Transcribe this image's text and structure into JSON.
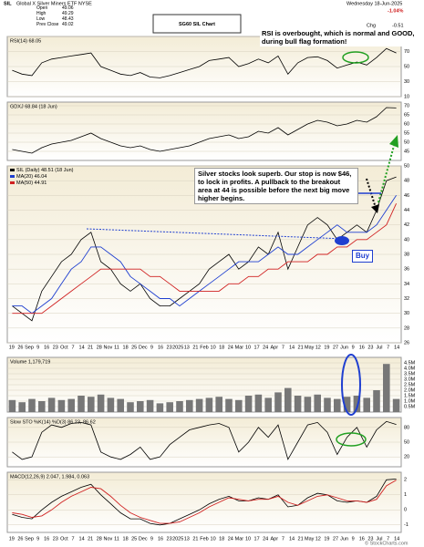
{
  "header": {
    "symbol": "SIL",
    "name": "Global X Silver Miners ETF NYSE",
    "quote": [
      [
        "Open",
        "49.06"
      ],
      [
        "High",
        "49.29"
      ],
      [
        "Low",
        "48.43"
      ],
      [
        "Prev Close",
        "49.02"
      ]
    ],
    "title": "SG60 SIL Chart",
    "date": "Wednesday 18-Jun-2025",
    "change_pct": "-1.04%",
    "change": "-0.51",
    "change_label": "Chg",
    "credit": "© StockCharts.com"
  },
  "annotations": {
    "rsi": "RSI is overbought, which is normal and GOOD, during bull flag formation!",
    "price": "Silver stocks look superb.  Our stop is now $46, to lock in profits.  A pullback to the breakout area at 44 is possible before the next big move higher begins.",
    "buy": "Buy"
  },
  "dates": [
    "19",
    "26",
    "Sep",
    "9",
    "16",
    "23",
    "Oct",
    "7",
    "14",
    "21",
    "28",
    "Nov",
    "11",
    "18",
    "25",
    "Dec",
    "9",
    "16",
    "23",
    "2025",
    "13",
    "21",
    "Feb",
    "10",
    "18",
    "24",
    "Mar",
    "10",
    "17",
    "24",
    "Apr",
    "7",
    "14",
    "21",
    "May",
    "12",
    "19",
    "27",
    "Jun",
    "9",
    "16",
    "23",
    "Jul",
    "7",
    "14"
  ],
  "chart_data": [
    {
      "type": "line",
      "label": "RSI(14) 68.05",
      "ylim": [
        10,
        90
      ],
      "yticks": [
        10,
        30,
        50,
        70,
        90
      ],
      "grid": true,
      "series": [
        {
          "color": "#000000",
          "values": [
            45,
            40,
            38,
            55,
            60,
            62,
            64,
            66,
            68,
            50,
            45,
            40,
            38,
            42,
            36,
            35,
            38,
            42,
            46,
            50,
            58,
            60,
            62,
            50,
            54,
            60,
            55,
            64,
            40,
            55,
            62,
            63,
            58,
            48,
            52,
            56,
            52,
            62,
            74,
            68
          ]
        }
      ]
    },
    {
      "type": "line",
      "label": "GDXJ 68.84 (18 Jun)",
      "ylim": [
        40,
        72
      ],
      "yticks": [
        45,
        50,
        55,
        60,
        65,
        70
      ],
      "grid": true,
      "series": [
        {
          "color": "#000000",
          "values": [
            46,
            45,
            44,
            47,
            49,
            50,
            51,
            53,
            55,
            52,
            50,
            48,
            47,
            48,
            46,
            45,
            46,
            47,
            48,
            50,
            52,
            53,
            54,
            52,
            53,
            56,
            55,
            58,
            54,
            57,
            60,
            62,
            61,
            59,
            60,
            62,
            61,
            64,
            69,
            68.8
          ]
        }
      ]
    },
    {
      "type": "line",
      "ylim": [
        26,
        50
      ],
      "yticks": [
        26,
        28,
        30,
        32,
        34,
        36,
        38,
        40,
        42,
        44,
        46,
        48,
        50
      ],
      "grid": true,
      "series": [
        {
          "name": "SIL (Daily) 48.51 (18 Jun)",
          "color": "#000000",
          "values": [
            31,
            30,
            29,
            33,
            35,
            37,
            38,
            40,
            41,
            37,
            36,
            34,
            33,
            34,
            32,
            31,
            31,
            32,
            33,
            34,
            36,
            37,
            38,
            36,
            37,
            39,
            38,
            41,
            36,
            39,
            42,
            43,
            42,
            40,
            41,
            42,
            41,
            44,
            48,
            48.5
          ]
        },
        {
          "name": "MA(20) 46.04",
          "color": "#1f3fd0",
          "values": [
            31,
            31,
            30,
            31,
            32,
            34,
            36,
            37,
            39,
            39,
            38,
            37,
            35,
            34,
            33,
            32,
            32,
            31,
            32,
            33,
            34,
            35,
            36,
            37,
            37,
            37,
            38,
            39,
            38,
            38,
            39,
            40,
            41,
            42,
            41,
            41,
            41,
            42,
            44,
            46
          ]
        },
        {
          "name": "MA(50) 44.91",
          "color": "#d02020",
          "values": [
            30,
            30,
            30,
            30,
            31,
            32,
            33,
            34,
            35,
            36,
            36,
            36,
            36,
            36,
            35,
            35,
            34,
            33,
            33,
            33,
            33,
            33,
            34,
            34,
            35,
            35,
            36,
            36,
            37,
            37,
            37,
            38,
            38,
            39,
            39,
            40,
            40,
            41,
            42,
            44.9
          ]
        }
      ]
    },
    {
      "type": "bar",
      "label": "Volume 1,179,719",
      "ylim": [
        0,
        5000000
      ],
      "yticks": [
        {
          "value": 500000,
          "label": "0.5M"
        },
        {
          "value": 1000000,
          "label": "1.0M"
        },
        {
          "value": 1500000,
          "label": "1.5M"
        },
        {
          "value": 2000000,
          "label": "2.0M"
        },
        {
          "value": 2500000,
          "label": "2.5M"
        },
        {
          "value": 3000000,
          "label": "3.0M"
        },
        {
          "value": 3500000,
          "label": "3.5M"
        },
        {
          "value": 4000000,
          "label": "4.0M"
        },
        {
          "value": 4500000,
          "label": "4.5M"
        }
      ],
      "grid": true,
      "series": [
        {
          "color": "#777777",
          "values": [
            1100000,
            900000,
            1200000,
            1000000,
            1300000,
            1100000,
            1200000,
            1500000,
            1400000,
            1600000,
            1300000,
            1200000,
            900000,
            1000000,
            1100000,
            800000,
            900000,
            1000000,
            1100000,
            1200000,
            1300000,
            1400000,
            1200000,
            1100000,
            1500000,
            1600000,
            1300000,
            1800000,
            2200000,
            1500000,
            1400000,
            1600000,
            1300000,
            1200000,
            1400000,
            1500000,
            1300000,
            2000000,
            4400000,
            1200000
          ]
        }
      ]
    },
    {
      "type": "line",
      "label": "Slow STO %K(14) %D(3) 86.23, 86.62",
      "ylim": [
        0,
        100
      ],
      "yticks": [
        20,
        50,
        80
      ],
      "grid": true,
      "series": [
        {
          "color": "#000000",
          "values": [
            30,
            15,
            20,
            70,
            85,
            80,
            88,
            90,
            85,
            30,
            20,
            15,
            25,
            40,
            15,
            20,
            45,
            60,
            75,
            80,
            85,
            88,
            80,
            30,
            50,
            80,
            60,
            85,
            15,
            50,
            85,
            90,
            70,
            25,
            60,
            80,
            40,
            75,
            92,
            86
          ]
        }
      ]
    },
    {
      "type": "line",
      "label": "MACD(12,26,9) 2.047, 1.984, 0.063",
      "ylim": [
        -1.5,
        2.5
      ],
      "yticks": [
        -1,
        0,
        1,
        2
      ],
      "grid": true,
      "series": [
        {
          "color": "#000000",
          "values": [
            -0.3,
            -0.5,
            -0.6,
            0,
            0.5,
            0.9,
            1.2,
            1.5,
            1.7,
            1,
            0.4,
            -0.2,
            -0.6,
            -0.6,
            -0.9,
            -1,
            -0.9,
            -0.6,
            -0.3,
            0,
            0.4,
            0.7,
            0.9,
            0.6,
            0.6,
            0.8,
            0.7,
            1,
            0.2,
            0.3,
            0.8,
            1.1,
            1,
            0.6,
            0.5,
            0.6,
            0.5,
            0.9,
            2,
            2.05
          ]
        },
        {
          "color": "#d02020",
          "values": [
            -0.2,
            -0.3,
            -0.5,
            -0.4,
            0,
            0.5,
            0.9,
            1.2,
            1.5,
            1.4,
            0.9,
            0.3,
            -0.2,
            -0.5,
            -0.7,
            -0.9,
            -0.9,
            -0.8,
            -0.5,
            -0.2,
            0.2,
            0.5,
            0.8,
            0.7,
            0.6,
            0.7,
            0.7,
            0.9,
            0.5,
            0.3,
            0.6,
            0.9,
            1,
            0.8,
            0.6,
            0.6,
            0.5,
            0.7,
            1.6,
            1.98
          ]
        }
      ]
    }
  ]
}
